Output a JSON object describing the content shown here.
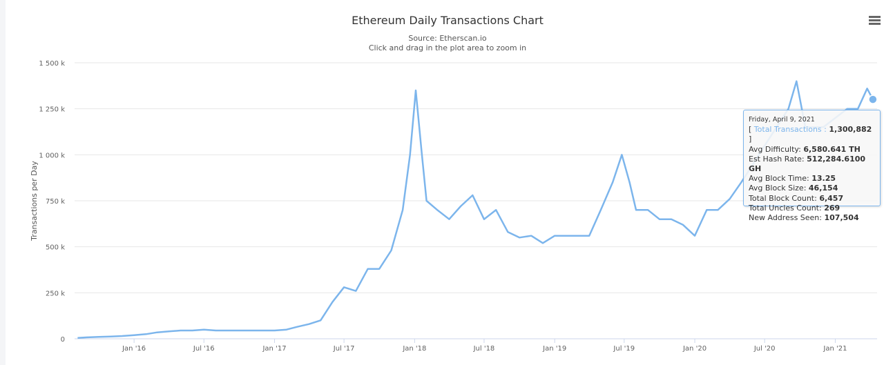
{
  "chart_data": {
    "type": "line",
    "title": "Ethereum Daily Transactions Chart",
    "subtitle": "Source: Etherscan.io",
    "subtitle2": "Click and drag in the plot area to zoom in",
    "ylabel": "Transactions per Day",
    "xlabel": "",
    "ylim": [
      0,
      1500000
    ],
    "yticks": [
      0,
      250000,
      500000,
      750000,
      1000000,
      1250000,
      1500000
    ],
    "ytick_labels": [
      "0",
      "250 k",
      "500 k",
      "750 k",
      "1 000 k",
      "1 250 k",
      "1 500 k"
    ],
    "xlim": [
      "2015-07-30",
      "2021-04-20"
    ],
    "xticks": [
      "2016-01-01",
      "2016-07-01",
      "2017-01-01",
      "2017-07-01",
      "2018-01-01",
      "2018-07-01",
      "2019-01-01",
      "2019-07-01",
      "2020-01-01",
      "2020-07-01",
      "2021-01-01"
    ],
    "xtick_labels": [
      "Jan '16",
      "Jul '16",
      "Jan '17",
      "Jul '17",
      "Jan '18",
      "Jul '18",
      "Jan '19",
      "Jul '19",
      "Jan '20",
      "Jul '20",
      "Jan '21"
    ],
    "grid": true,
    "legend": "none",
    "series": [
      {
        "name": "Total Transactions",
        "color": "#7cb5ec",
        "x": [
          "2015-08-07",
          "2015-09-01",
          "2015-10-01",
          "2015-11-01",
          "2015-12-01",
          "2016-01-01",
          "2016-02-01",
          "2016-03-01",
          "2016-04-01",
          "2016-05-01",
          "2016-06-01",
          "2016-07-01",
          "2016-08-01",
          "2016-09-01",
          "2016-10-01",
          "2016-11-01",
          "2016-12-01",
          "2017-01-01",
          "2017-02-01",
          "2017-03-01",
          "2017-04-01",
          "2017-05-01",
          "2017-06-01",
          "2017-07-01",
          "2017-08-01",
          "2017-09-01",
          "2017-10-01",
          "2017-11-01",
          "2017-12-01",
          "2017-12-20",
          "2018-01-04",
          "2018-01-20",
          "2018-02-01",
          "2018-03-01",
          "2018-04-01",
          "2018-05-01",
          "2018-06-01",
          "2018-07-01",
          "2018-08-01",
          "2018-09-01",
          "2018-10-01",
          "2018-11-01",
          "2018-12-01",
          "2019-01-01",
          "2019-02-01",
          "2019-03-01",
          "2019-04-01",
          "2019-05-01",
          "2019-06-01",
          "2019-06-25",
          "2019-07-15",
          "2019-08-01",
          "2019-09-01",
          "2019-10-01",
          "2019-11-01",
          "2019-12-01",
          "2020-01-01",
          "2020-02-01",
          "2020-03-01",
          "2020-04-01",
          "2020-05-01",
          "2020-06-01",
          "2020-07-01",
          "2020-08-01",
          "2020-09-01",
          "2020-09-22",
          "2020-10-15",
          "2020-11-01",
          "2020-12-01",
          "2021-01-01",
          "2021-02-01",
          "2021-03-01",
          "2021-03-25",
          "2021-04-09"
        ],
        "y": [
          5000,
          8000,
          10000,
          12000,
          15000,
          20000,
          25000,
          35000,
          40000,
          45000,
          45000,
          50000,
          45000,
          45000,
          45000,
          45000,
          45000,
          45000,
          50000,
          65000,
          80000,
          100000,
          200000,
          280000,
          260000,
          380000,
          380000,
          480000,
          700000,
          1000000,
          1350000,
          1000000,
          750000,
          700000,
          650000,
          720000,
          780000,
          650000,
          700000,
          580000,
          550000,
          560000,
          520000,
          560000,
          560000,
          560000,
          560000,
          700000,
          850000,
          1000000,
          850000,
          700000,
          700000,
          650000,
          650000,
          620000,
          560000,
          700000,
          700000,
          760000,
          850000,
          950000,
          1050000,
          1150000,
          1250000,
          1400000,
          1150000,
          1150000,
          1150000,
          1200000,
          1250000,
          1250000,
          1360000,
          1300882
        ]
      }
    ]
  },
  "tooltip": {
    "date": "Friday, April 9, 2021",
    "series_label": "Total Transactions",
    "series_value": "1,300,882",
    "rows": [
      {
        "label": "Avg Difficulty:",
        "value": "6,580.641 TH"
      },
      {
        "label": "Est Hash Rate:",
        "value": "512,284.6100 GH"
      },
      {
        "label": "Avg Block Time:",
        "value": "13.25"
      },
      {
        "label": "Avg Block Size:",
        "value": "46,154"
      },
      {
        "label": "Total Block Count:",
        "value": "6,457"
      },
      {
        "label": "Total Uncles Count:",
        "value": "269"
      },
      {
        "label": "New Address Seen:",
        "value": "107,504"
      }
    ]
  }
}
